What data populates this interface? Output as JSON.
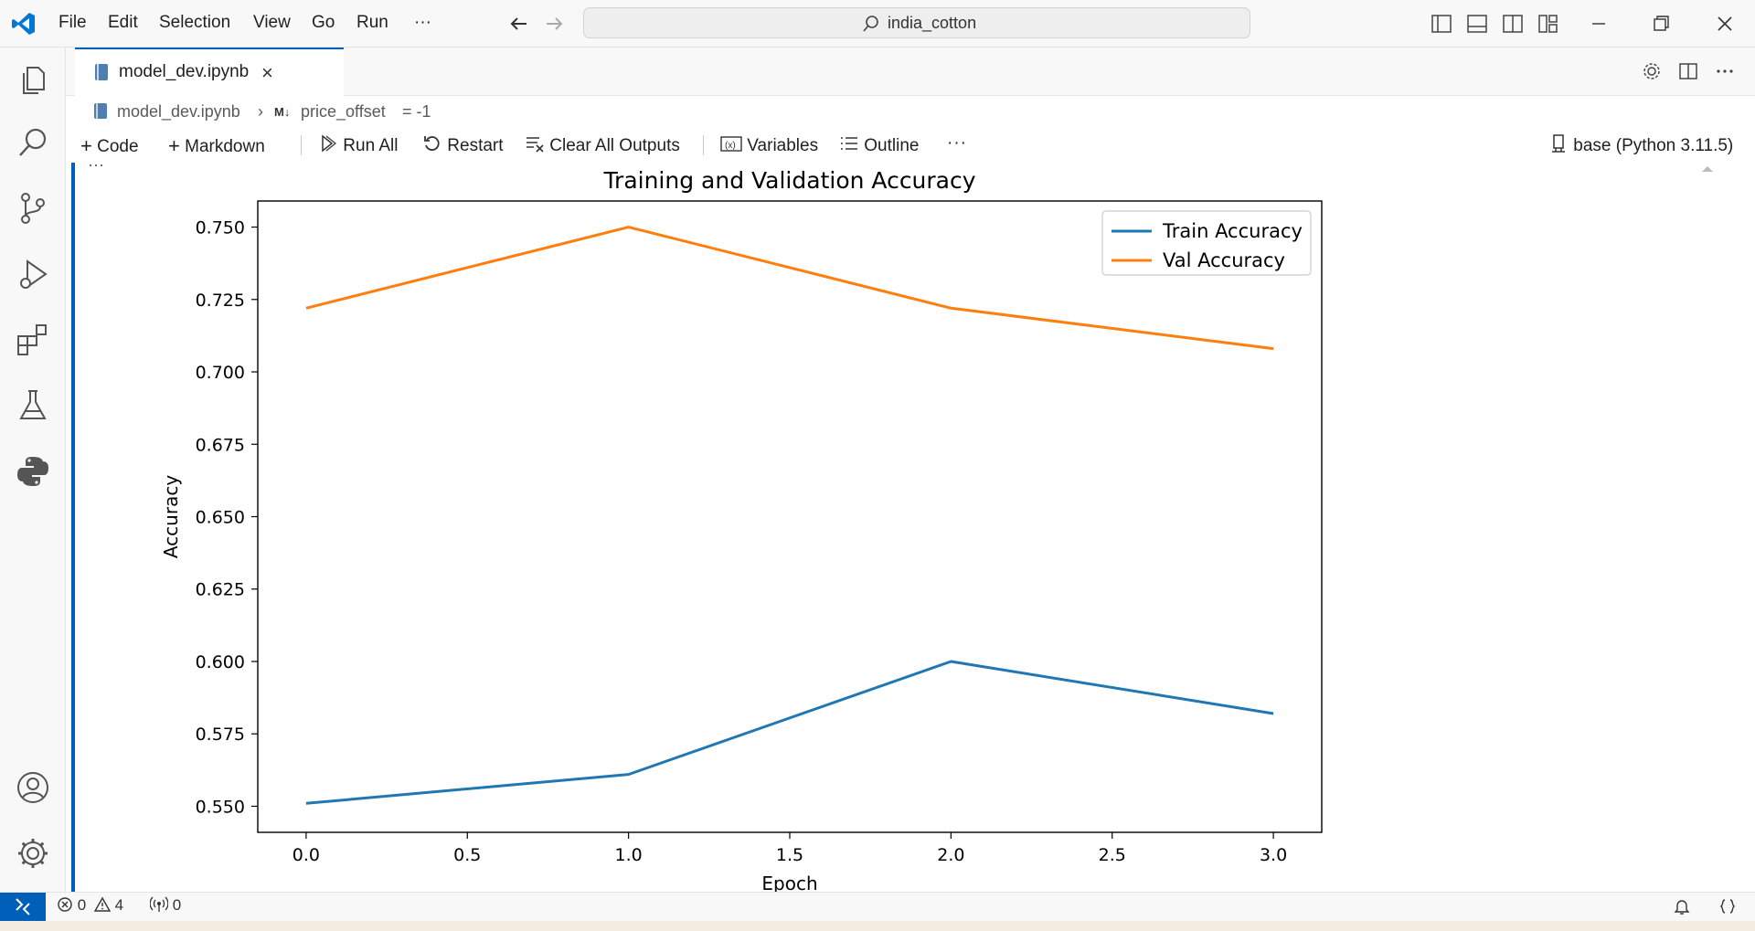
{
  "menu": [
    "File",
    "Edit",
    "Selection",
    "View",
    "Go",
    "Run",
    "···"
  ],
  "search": {
    "text": "india_cotton"
  },
  "tab": {
    "label": "model_dev.ipynb"
  },
  "breadcrumb": {
    "file": "model_dev.ipynb",
    "md_badge": "M↓",
    "item": "price_offset",
    "value": "= -1"
  },
  "toolbar": {
    "code": "Code",
    "markdown": "Markdown",
    "run_all": "Run All",
    "restart": "Restart",
    "clear_outputs": "Clear All Outputs",
    "variables": "Variables",
    "outline": "Outline",
    "more": "···",
    "kernel": "base (Python 3.11.5)"
  },
  "cell": {
    "ellipsis": "···"
  },
  "status": {
    "errors": "0",
    "warnings": "4",
    "ports": "0"
  },
  "colors": {
    "accent": "#005fb8",
    "train": "#1f77b4",
    "val": "#ff7f0e"
  },
  "chart_data": {
    "type": "line",
    "title": "Training and Validation Accuracy",
    "xlabel": "Epoch",
    "ylabel": "Accuracy",
    "x": [
      0,
      1,
      2,
      3
    ],
    "xticks": [
      "0.0",
      "0.5",
      "1.0",
      "1.5",
      "2.0",
      "2.5",
      "3.0"
    ],
    "yticks": [
      "0.550",
      "0.575",
      "0.600",
      "0.625",
      "0.650",
      "0.675",
      "0.700",
      "0.725",
      "0.750"
    ],
    "xlim": [
      -0.15,
      3.15
    ],
    "ylim": [
      0.541,
      0.759
    ],
    "series": [
      {
        "name": "Train Accuracy",
        "color": "#1f77b4",
        "values": [
          0.551,
          0.561,
          0.6,
          0.582
        ]
      },
      {
        "name": "Val Accuracy",
        "color": "#ff7f0e",
        "values": [
          0.722,
          0.75,
          0.722,
          0.708
        ]
      }
    ],
    "legend": "top-right",
    "grid": false
  }
}
